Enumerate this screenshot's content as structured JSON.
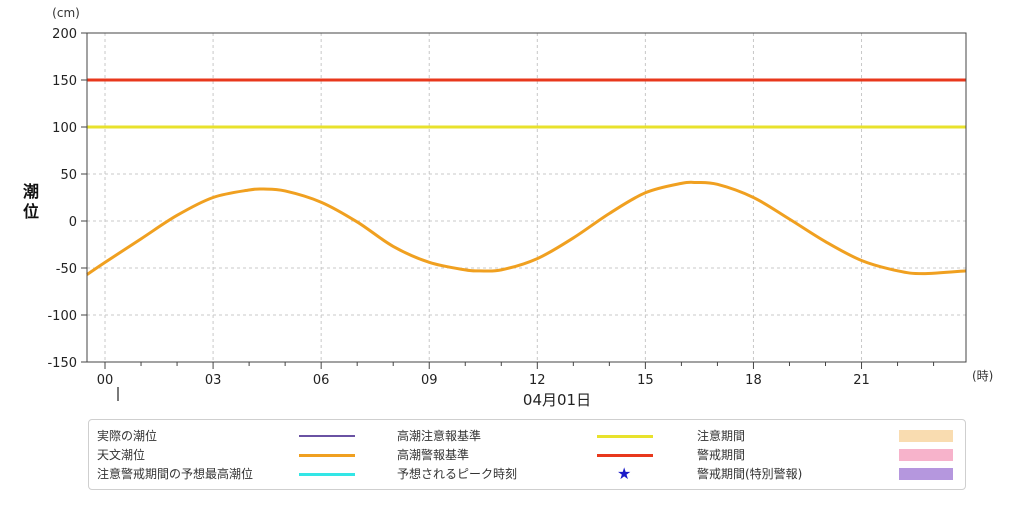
{
  "chart_data": {
    "type": "line",
    "y_unit": "(cm)",
    "ylabel": "潮位",
    "x_unit": "(時)",
    "date_label": "04月01日",
    "ylim": [
      -150,
      200
    ],
    "yticks": [
      -150,
      -100,
      -50,
      0,
      50,
      100,
      150,
      200
    ],
    "xlim": [
      -0.5,
      23.9
    ],
    "xticks": [
      0,
      3,
      6,
      9,
      12,
      15,
      18,
      21
    ],
    "xtick_labels": [
      "00",
      "03",
      "06",
      "09",
      "12",
      "15",
      "18",
      "21"
    ],
    "grid": true,
    "threshold_lines": [
      {
        "name": "高潮警報基準",
        "value": 150,
        "color": "#e8381c"
      },
      {
        "name": "高潮注意報基準",
        "value": 100,
        "color": "#e8e22c"
      }
    ],
    "series": [
      {
        "name": "天文潮位",
        "color": "#f0a020",
        "x": [
          -0.5,
          0.0,
          1.0,
          2.0,
          3.0,
          4.0,
          4.4,
          5.0,
          6.0,
          7.0,
          8.0,
          9.0,
          10.0,
          10.4,
          11.0,
          12.0,
          13.0,
          14.0,
          15.0,
          16.0,
          16.4,
          17.0,
          18.0,
          19.0,
          20.0,
          21.0,
          22.0,
          22.7,
          23.9
        ],
        "y": [
          -57,
          -44,
          -19,
          6,
          25,
          33,
          34,
          32,
          20,
          -1,
          -27,
          -44,
          -52,
          -53,
          -52,
          -40,
          -18,
          8,
          30,
          40,
          41,
          39,
          25,
          2,
          -22,
          -42,
          -53,
          -56,
          -53
        ]
      }
    ]
  },
  "legend": {
    "items": [
      {
        "label": "実際の潮位",
        "kind": "line",
        "color": "#6a52a3",
        "width": 1.5
      },
      {
        "label": "高潮注意報基準",
        "kind": "line",
        "color": "#e8e22c",
        "width": 3
      },
      {
        "label": "注意期間",
        "kind": "box",
        "color": "#f9dcb0"
      },
      {
        "label": "天文潮位",
        "kind": "line",
        "color": "#f0a020",
        "width": 3
      },
      {
        "label": "高潮警報基準",
        "kind": "line",
        "color": "#e8381c",
        "width": 3
      },
      {
        "label": "警戒期間",
        "kind": "box",
        "color": "#f7b3cb"
      },
      {
        "label": "注意警戒期間の予想最高潮位",
        "kind": "line",
        "color": "#33e6e6",
        "width": 3
      },
      {
        "label": "予想されるピーク時刻",
        "kind": "star",
        "color": "#1a1ac8",
        "glyph": "★"
      },
      {
        "label": "警戒期間(特別警報)",
        "kind": "box",
        "color": "#b597de"
      }
    ]
  }
}
